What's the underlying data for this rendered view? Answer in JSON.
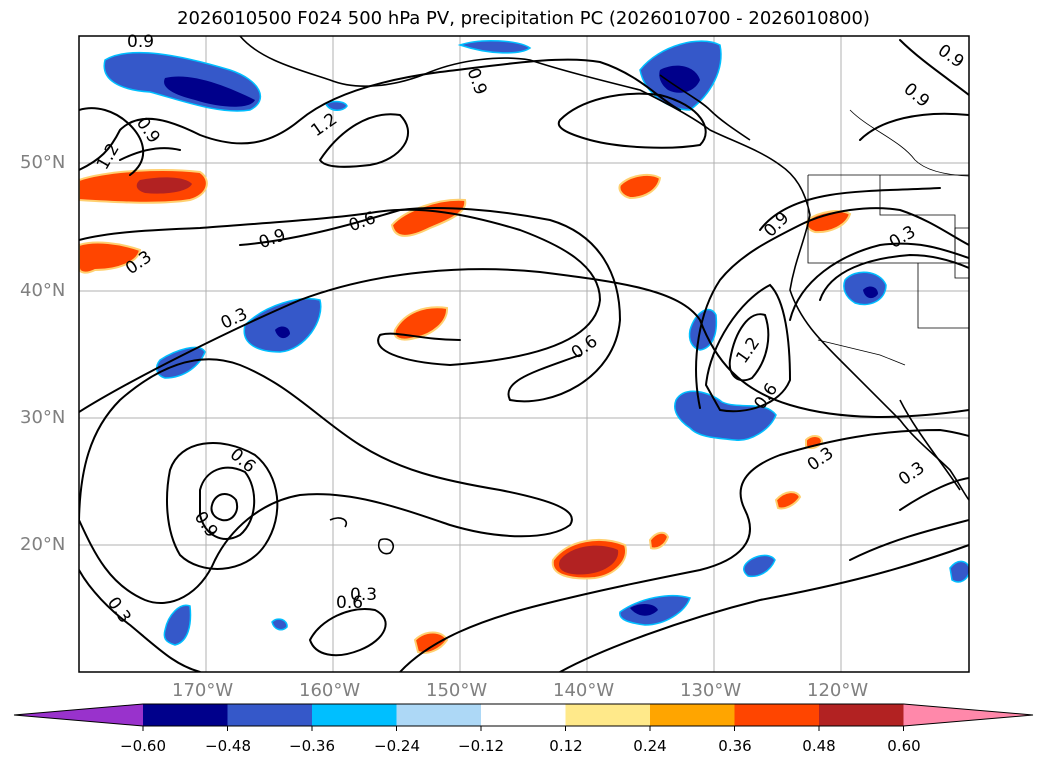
{
  "title": "2026010500 F024 500 hPa PV, precipitation PC (2026010700 - 2026010800)",
  "lat_ticks": [
    "50°N",
    "40°N",
    "30°N",
    "20°N"
  ],
  "lon_ticks": [
    "170°W",
    "160°W",
    "150°W",
    "140°W",
    "130°W",
    "120°W"
  ],
  "contour_labels": [
    "0.9",
    "0.9",
    "0.9",
    "1.2",
    "1.2",
    "0.9",
    "0.3",
    "0.9",
    "0.6",
    "0.9",
    "0.3",
    "0.3",
    "0.6",
    "0.6",
    "0.9",
    "1.2",
    "0.6",
    "0.6",
    "0.9",
    "0.3",
    "0.3",
    "0.3",
    "0.3"
  ],
  "colorbar": {
    "ticks": [
      "−0.60",
      "−0.48",
      "−0.36",
      "−0.24",
      "−0.12",
      "0.12",
      "0.24",
      "0.36",
      "0.48",
      "0.60"
    ],
    "colors": [
      "#9932cc",
      "#00008b",
      "#3558c9",
      "#00bfff",
      "#add8f6",
      "#ffffff",
      "#ffe98a",
      "#ffa500",
      "#ff4500",
      "#b22222",
      "#ff88aa"
    ]
  }
}
